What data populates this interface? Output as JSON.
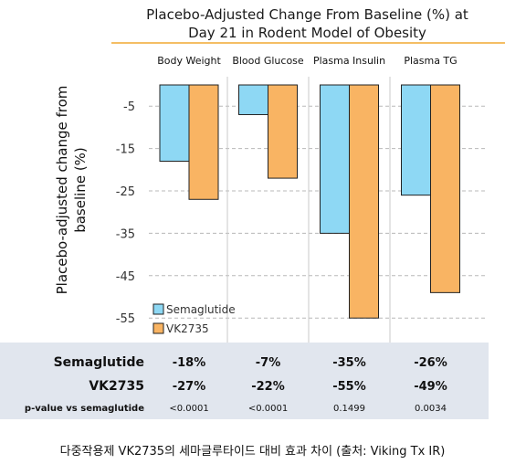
{
  "chart_data": {
    "type": "bar",
    "title": [
      "Placebo-Adjusted Change From Baseline (%) at",
      "Day 21 in Rodent Model of Obesity"
    ],
    "ylabel": [
      "Placebo-adjusted change from",
      "baseline (%)"
    ],
    "categories": [
      "Body Weight",
      "Blood Glucose",
      "Plasma Insulin",
      "Plasma TG"
    ],
    "series": [
      {
        "name": "Semaglutide",
        "color": "#8ed8f4",
        "values": [
          -18,
          -7,
          -35,
          -26
        ]
      },
      {
        "name": "VK2735",
        "color": "#f9b463",
        "values": [
          -27,
          -22,
          -55,
          -49
        ]
      }
    ],
    "yticks": [
      -5,
      -15,
      -25,
      -35,
      -45,
      -55
    ],
    "ylim": [
      -57,
      0
    ],
    "grid": true,
    "legend": "bottom-left",
    "table": {
      "rows": [
        {
          "label": "Semaglutide",
          "cells": [
            "-18%",
            "-7%",
            "-35%",
            "-26%"
          ]
        },
        {
          "label": "VK2735",
          "cells": [
            "-27%",
            "-22%",
            "-55%",
            "-49%"
          ]
        },
        {
          "label": "p-value vs semaglutide",
          "cells": [
            "<0.0001",
            "<0.0001",
            "0.1499",
            "0.0034"
          ]
        }
      ]
    }
  },
  "caption": "다중작용제 VK2735의 세마글루타이드 대비 효과 차이 (출처: Viking Tx IR)",
  "colors": {
    "accent_line": "#f0a830",
    "table_bg": "#e1e6ee",
    "grid": "#b8b8b8",
    "divider": "#c8c8c8"
  }
}
